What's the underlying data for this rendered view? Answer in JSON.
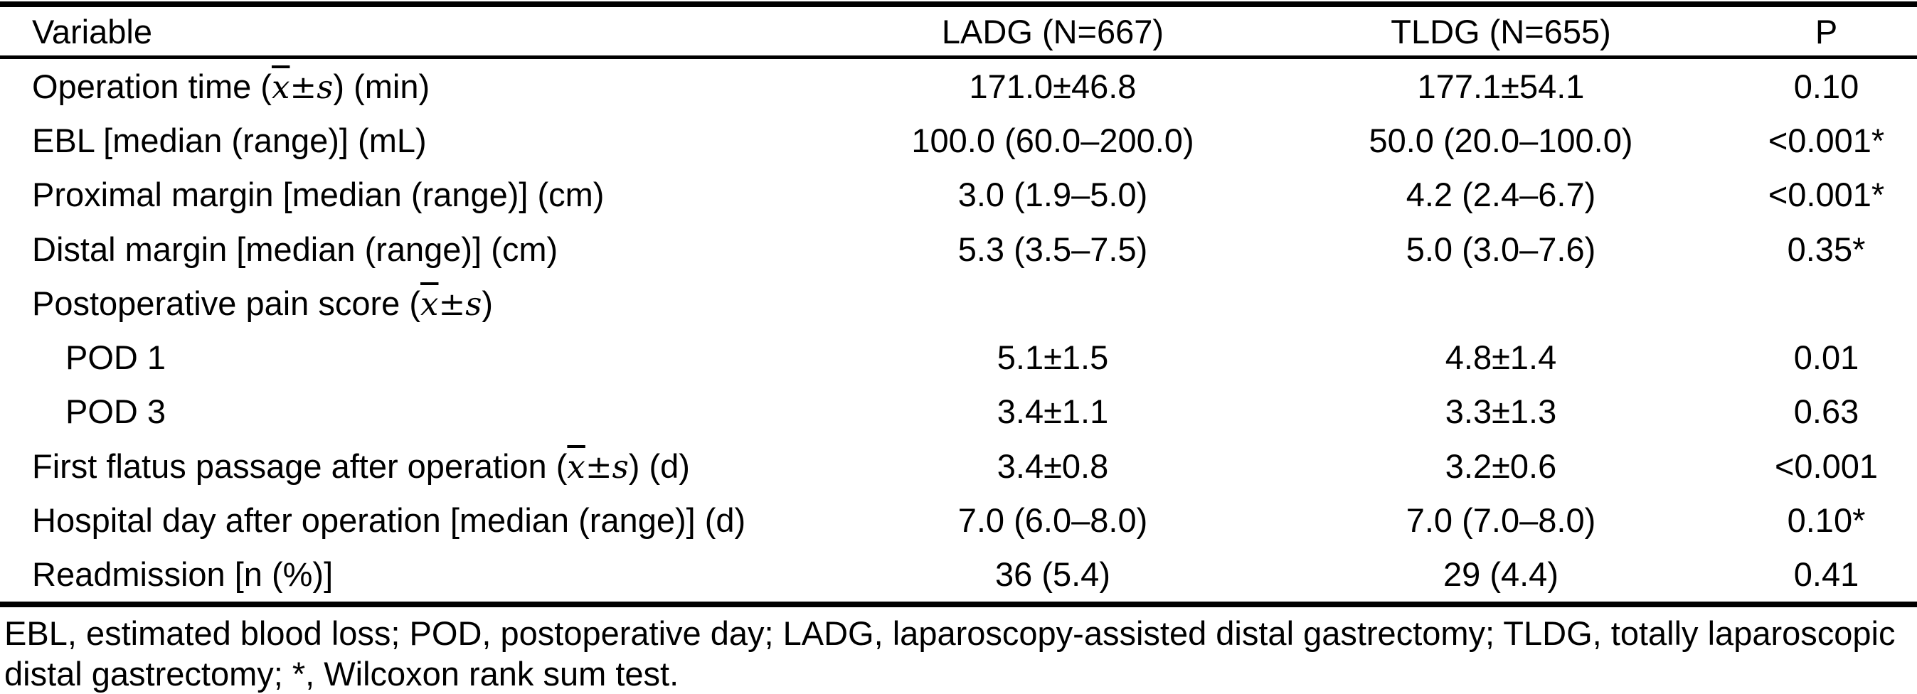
{
  "table": {
    "columns": {
      "variable": "Variable",
      "ladg": "LADG (N=667)",
      "tldg": "TLDG (N=655)",
      "p": "P"
    },
    "rows": [
      {
        "indent": false,
        "label": {
          "pre": "Operation time (",
          "math_x": "x",
          "math_pm": "±",
          "math_s": "s",
          "post": ") (min)"
        },
        "ladg": "171.0±46.8",
        "tldg": "177.1±54.1",
        "p": "0.10"
      },
      {
        "indent": false,
        "label": {
          "pre": "EBL [median (range)] (mL)",
          "math_x": "",
          "math_pm": "",
          "math_s": "",
          "post": ""
        },
        "ladg": "100.0 (60.0–200.0)",
        "tldg": "50.0 (20.0–100.0)",
        "p": "<0.001*"
      },
      {
        "indent": false,
        "label": {
          "pre": "Proximal margin [median (range)] (cm)",
          "math_x": "",
          "math_pm": "",
          "math_s": "",
          "post": ""
        },
        "ladg": "3.0 (1.9–5.0)",
        "tldg": "4.2 (2.4–6.7)",
        "p": "<0.001*"
      },
      {
        "indent": false,
        "label": {
          "pre": "Distal margin [median (range)] (cm)",
          "math_x": "",
          "math_pm": "",
          "math_s": "",
          "post": ""
        },
        "ladg": "5.3 (3.5–7.5)",
        "tldg": "5.0 (3.0–7.6)",
        "p": "0.35*"
      },
      {
        "indent": false,
        "label": {
          "pre": "Postoperative pain score (",
          "math_x": "x",
          "math_pm": "±",
          "math_s": "s",
          "post": ")"
        },
        "ladg": "",
        "tldg": "",
        "p": ""
      },
      {
        "indent": true,
        "label": {
          "pre": "POD 1",
          "math_x": "",
          "math_pm": "",
          "math_s": "",
          "post": ""
        },
        "ladg": "5.1±1.5",
        "tldg": "4.8±1.4",
        "p": "0.01"
      },
      {
        "indent": true,
        "label": {
          "pre": "POD 3",
          "math_x": "",
          "math_pm": "",
          "math_s": "",
          "post": ""
        },
        "ladg": "3.4±1.1",
        "tldg": "3.3±1.3",
        "p": "0.63"
      },
      {
        "indent": false,
        "label": {
          "pre": "First flatus passage after operation (",
          "math_x": "x",
          "math_pm": "±",
          "math_s": "s",
          "post": ") (d)"
        },
        "ladg": "3.4±0.8",
        "tldg": "3.2±0.6",
        "p": "<0.001"
      },
      {
        "indent": false,
        "label": {
          "pre": "Hospital day after operation [median (range)] (d)",
          "math_x": "",
          "math_pm": "",
          "math_s": "",
          "post": ""
        },
        "ladg": "7.0 (6.0–8.0)",
        "tldg": "7.0 (7.0–8.0)",
        "p": "0.10*"
      },
      {
        "indent": false,
        "label": {
          "pre": "Readmission [n (%)]",
          "math_x": "",
          "math_pm": "",
          "math_s": "",
          "post": ""
        },
        "ladg": "36 (5.4)",
        "tldg": "29 (4.4)",
        "p": "0.41"
      }
    ],
    "footnote": "EBL, estimated blood loss; POD, postoperative day; LADG, laparoscopy-assisted distal gastrectomy; TLDG, totally laparoscopic distal gastrectomy; *, Wilcoxon rank sum test.",
    "text_color": "#000000",
    "background_color": "#ffffff"
  }
}
